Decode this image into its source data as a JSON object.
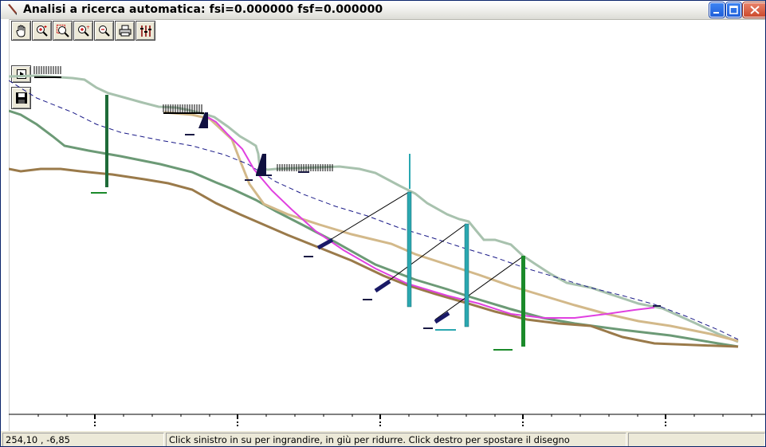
{
  "window": {
    "title": "Analisi a ricerca automatica: fsi=0.000000 fsf=0.000000"
  },
  "toolbar": {
    "buttons": [
      "hand-icon",
      "zoom-in-icon",
      "zoom-window-icon",
      "zoom-plus-icon",
      "zoom-extents-icon",
      "print-icon",
      "layers-icon"
    ]
  },
  "side_buttons": [
    "play-icon",
    "save-icon"
  ],
  "status": {
    "coordinates": "254,10 , -6,85",
    "hint": "Click sinistro in su per ingrandire, in giù per ridurre. Click destro per spostare il disegno",
    "extra": ""
  },
  "colors": {
    "ground_surface": "#a8c2ae",
    "layer_green": "#6c9a76",
    "layer_brown": "#9a7a4a",
    "layer_tan": "#d3b98a",
    "slip_surface": "#e040e0",
    "water_table": "#1a1a88",
    "pile_dark_green": "#1e6b38",
    "pile_teal": "#2aa7b0",
    "pile_green": "#1b8a2a"
  }
}
